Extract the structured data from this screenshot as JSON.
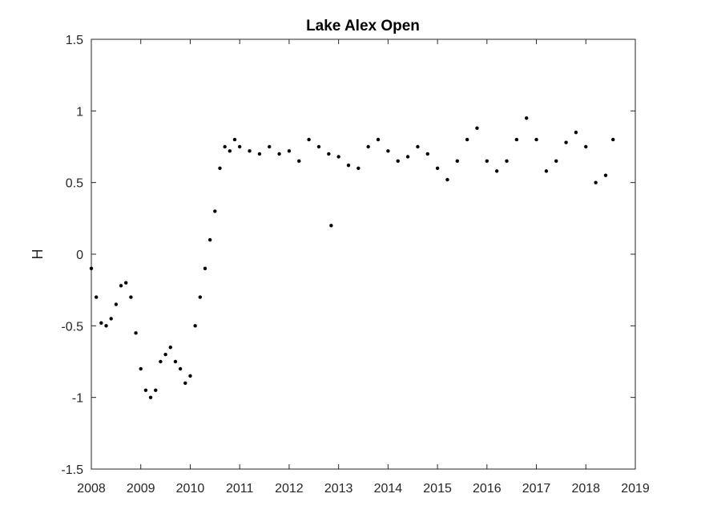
{
  "chart_data": {
    "type": "scatter",
    "title": "Lake Alex Open",
    "xlabel": "",
    "ylabel": "H",
    "xlim": [
      2008,
      2019
    ],
    "ylim": [
      -1.5,
      1.5
    ],
    "xticks": [
      "2008",
      "2009",
      "2010",
      "2011",
      "2012",
      "2013",
      "2014",
      "2015",
      "2016",
      "2017",
      "2018",
      "2019"
    ],
    "yticks": [
      "1.5",
      "1",
      "0.5",
      "0",
      "-0.5",
      "-1",
      "-1.5"
    ],
    "grid": false,
    "marker_color": "#000000",
    "series": [
      {
        "x": [
          2008.0,
          2008.1,
          2008.2,
          2008.3,
          2008.4,
          2008.5,
          2008.6,
          2008.7,
          2008.8,
          2008.9,
          2009.0,
          2009.1,
          2009.2,
          2009.3,
          2009.4,
          2009.5,
          2009.6,
          2009.7,
          2009.8,
          2009.9,
          2010.0,
          2010.1,
          2010.2,
          2010.3,
          2010.4,
          2010.5,
          2010.6,
          2010.7,
          2010.8,
          2010.9,
          2011.0,
          2011.2,
          2011.4,
          2011.6,
          2011.8,
          2012.0,
          2012.2,
          2012.4,
          2012.6,
          2012.8,
          2012.85,
          2013.0,
          2013.2,
          2013.4,
          2013.6,
          2013.8,
          2014.0,
          2014.2,
          2014.4,
          2014.6,
          2014.8,
          2015.0,
          2015.2,
          2015.4,
          2015.6,
          2015.8,
          2016.0,
          2016.2,
          2016.4,
          2016.6,
          2016.8,
          2017.0,
          2017.2,
          2017.4,
          2017.6,
          2017.8,
          2018.0,
          2018.2,
          2018.4,
          2018.55
        ],
        "y": [
          -0.1,
          -0.3,
          -0.48,
          -0.5,
          -0.45,
          -0.35,
          -0.22,
          -0.2,
          -0.3,
          -0.55,
          -0.8,
          -0.95,
          -1.0,
          -0.95,
          -0.75,
          -0.7,
          -0.65,
          -0.75,
          -0.8,
          -0.9,
          -0.85,
          -0.5,
          -0.3,
          -0.1,
          0.1,
          0.3,
          0.6,
          0.75,
          0.72,
          0.8,
          0.75,
          0.72,
          0.7,
          0.75,
          0.7,
          0.72,
          0.65,
          0.8,
          0.75,
          0.7,
          0.2,
          0.68,
          0.62,
          0.6,
          0.75,
          0.8,
          0.72,
          0.65,
          0.68,
          0.75,
          0.7,
          0.6,
          0.52,
          0.65,
          0.8,
          0.88,
          0.65,
          0.58,
          0.65,
          0.8,
          0.95,
          0.8,
          0.58,
          0.65,
          0.78,
          0.85,
          0.75,
          0.5,
          0.55,
          0.8
        ]
      }
    ]
  }
}
